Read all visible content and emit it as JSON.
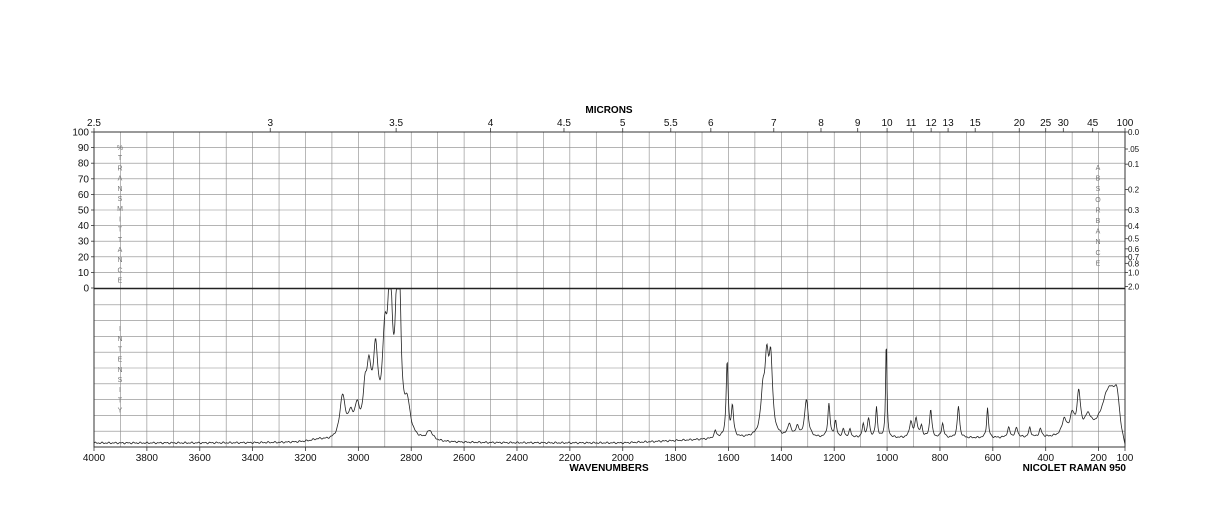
{
  "chart_data": {
    "type": "line",
    "title": "",
    "instrument": "NICOLET RAMAN 950",
    "top_axis_title": "MICRONS",
    "bottom_axis_title": "WAVENUMBERS",
    "left_upper_axis_title": "%TRANSMITTANCE",
    "left_lower_axis_title": "INTENSITY",
    "right_axis_title": "ABSORBANCE",
    "xlim": [
      4000,
      100
    ],
    "bottom_ticks": [
      "4000",
      "3800",
      "3600",
      "3400",
      "3200",
      "3000",
      "2800",
      "2600",
      "2400",
      "2200",
      "2000",
      "1800",
      "1600",
      "1400",
      "1200",
      "1000",
      "800",
      "600",
      "400",
      "200",
      "100"
    ],
    "micron_ticks": [
      {
        "um": 2.5,
        "label": "2.5"
      },
      {
        "um": 3,
        "label": "3"
      },
      {
        "um": 3.5,
        "label": "3.5"
      },
      {
        "um": 4,
        "label": "4"
      },
      {
        "um": 4.5,
        "label": "4.5"
      },
      {
        "um": 5,
        "label": "5"
      },
      {
        "um": 5.5,
        "label": "5.5"
      },
      {
        "um": 6,
        "label": "6"
      },
      {
        "um": 7,
        "label": "7"
      },
      {
        "um": 8,
        "label": "8"
      },
      {
        "um": 9,
        "label": "9"
      },
      {
        "um": 10,
        "label": "10"
      },
      {
        "um": 11,
        "label": "11"
      },
      {
        "um": 12,
        "label": "12"
      },
      {
        "um": 13,
        "label": "13"
      },
      {
        "um": 15,
        "label": "15"
      },
      {
        "um": 20,
        "label": "20"
      },
      {
        "um": 25,
        "label": "25"
      },
      {
        "um": 30,
        "label": "30"
      },
      {
        "um": 45,
        "label": "45"
      },
      {
        "um": 100,
        "label": "100"
      }
    ],
    "transmittance_ticks": [
      "100",
      "90",
      "80",
      "70",
      "60",
      "50",
      "40",
      "30",
      "20",
      "10",
      "0"
    ],
    "absorbance_ticks": [
      {
        "t": 100,
        "label": "0.0"
      },
      {
        "t": 89.1,
        "label": ".05"
      },
      {
        "t": 79.4,
        "label": "0.1"
      },
      {
        "t": 63.1,
        "label": "0.2"
      },
      {
        "t": 50.1,
        "label": "0.3"
      },
      {
        "t": 39.8,
        "label": "0.4"
      },
      {
        "t": 31.6,
        "label": "0.5"
      },
      {
        "t": 25.1,
        "label": "0.6"
      },
      {
        "t": 20.0,
        "label": "0.7"
      },
      {
        "t": 15.8,
        "label": "0.8"
      },
      {
        "t": 10.0,
        "label": "1.0"
      },
      {
        "t": 1.0,
        "label": "2.0"
      }
    ],
    "ylim": [
      0,
      100
    ],
    "grid": true,
    "baseline": 2.5,
    "series": [
      {
        "peaks": [
          {
            "x": 3060,
            "h": 27,
            "w": 12
          },
          {
            "x": 3030,
            "h": 12,
            "w": 12
          },
          {
            "x": 3005,
            "h": 17,
            "w": 12
          },
          {
            "x": 2975,
            "h": 21,
            "w": 9
          },
          {
            "x": 2960,
            "h": 36,
            "w": 11
          },
          {
            "x": 2935,
            "h": 49,
            "w": 11
          },
          {
            "x": 2900,
            "h": 53,
            "w": 11
          },
          {
            "x": 2880,
            "h": 93,
            "w": 10
          },
          {
            "x": 2855,
            "h": 58,
            "w": 8
          },
          {
            "x": 2845,
            "h": 87,
            "w": 7
          },
          {
            "x": 2815,
            "h": 20,
            "w": 14
          },
          {
            "x": 3150,
            "h": 1.5,
            "w": 40
          },
          {
            "x": 2730,
            "h": 6,
            "w": 14
          },
          {
            "x": 1650,
            "h": 4,
            "w": 6
          },
          {
            "x": 1605,
            "h": 48,
            "w": 4.5
          },
          {
            "x": 1585,
            "h": 19,
            "w": 5
          },
          {
            "x": 1470,
            "h": 23,
            "w": 9
          },
          {
            "x": 1455,
            "h": 43,
            "w": 9
          },
          {
            "x": 1440,
            "h": 44,
            "w": 8
          },
          {
            "x": 1370,
            "h": 8,
            "w": 7
          },
          {
            "x": 1340,
            "h": 6,
            "w": 8
          },
          {
            "x": 1305,
            "h": 24,
            "w": 8
          },
          {
            "x": 1220,
            "h": 21,
            "w": 5
          },
          {
            "x": 1195,
            "h": 10,
            "w": 5
          },
          {
            "x": 1165,
            "h": 5,
            "w": 5
          },
          {
            "x": 1140,
            "h": 5,
            "w": 5
          },
          {
            "x": 1090,
            "h": 8,
            "w": 5
          },
          {
            "x": 1070,
            "h": 12,
            "w": 5
          },
          {
            "x": 1040,
            "h": 19,
            "w": 4
          },
          {
            "x": 1003,
            "h": 62,
            "w": 3
          },
          {
            "x": 910,
            "h": 10,
            "w": 6
          },
          {
            "x": 890,
            "h": 12,
            "w": 6
          },
          {
            "x": 870,
            "h": 7,
            "w": 5
          },
          {
            "x": 835,
            "h": 18,
            "w": 5
          },
          {
            "x": 790,
            "h": 9,
            "w": 5
          },
          {
            "x": 730,
            "h": 20,
            "w": 5
          },
          {
            "x": 620,
            "h": 19,
            "w": 4
          },
          {
            "x": 540,
            "h": 6,
            "w": 6
          },
          {
            "x": 510,
            "h": 6,
            "w": 6
          },
          {
            "x": 460,
            "h": 6,
            "w": 5
          },
          {
            "x": 420,
            "h": 5,
            "w": 6
          },
          {
            "x": 330,
            "h": 10,
            "w": 10
          },
          {
            "x": 300,
            "h": 12,
            "w": 10
          },
          {
            "x": 275,
            "h": 25,
            "w": 8
          },
          {
            "x": 240,
            "h": 10,
            "w": 14
          },
          {
            "x": 160,
            "h": 30,
            "w": 35
          },
          {
            "x": 130,
            "h": 18,
            "w": 12
          }
        ]
      }
    ]
  }
}
